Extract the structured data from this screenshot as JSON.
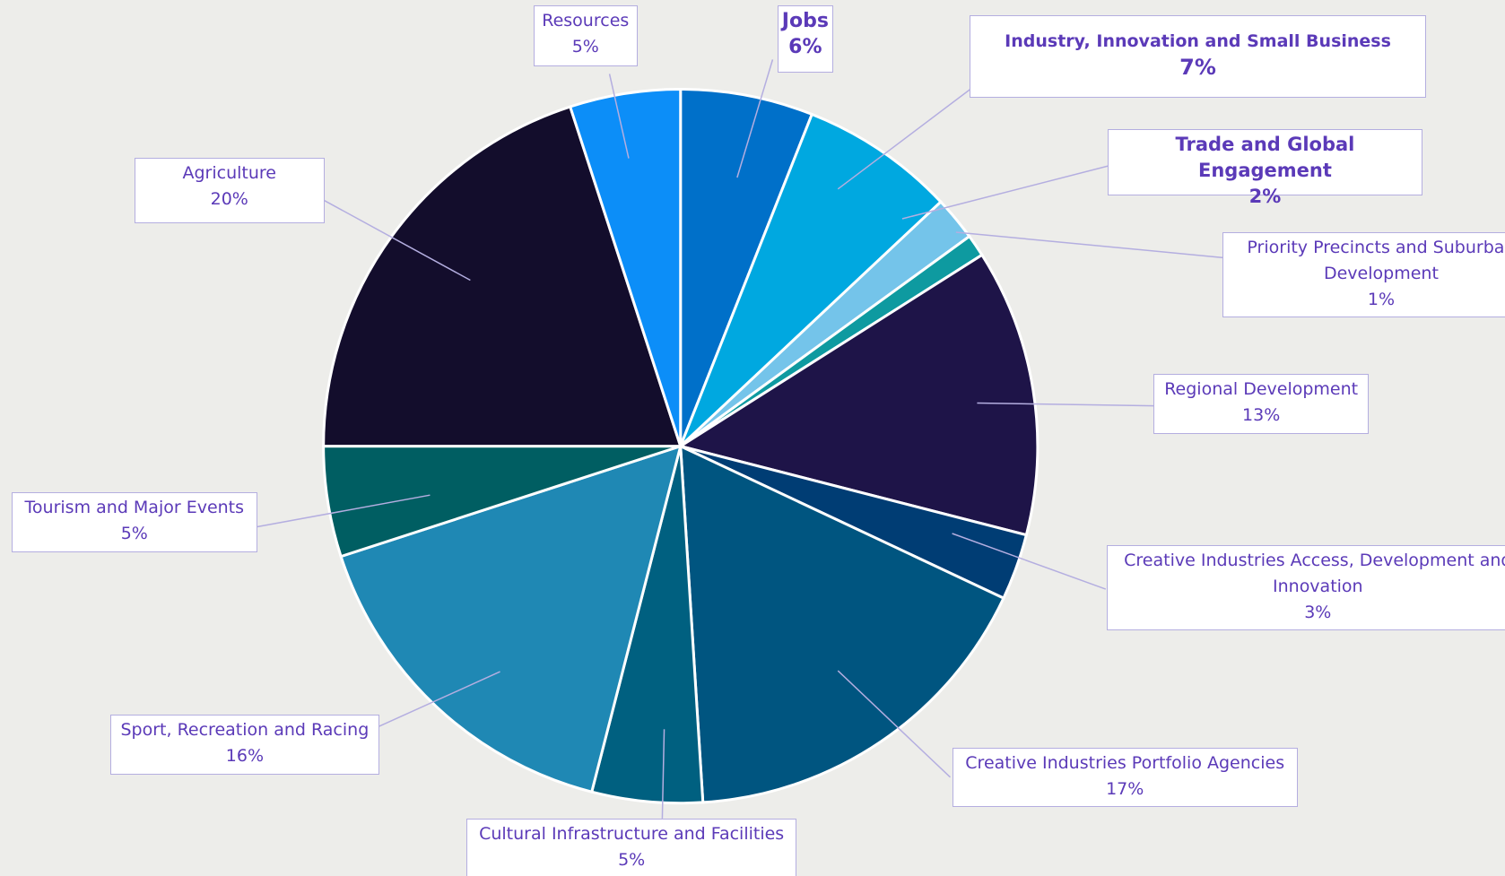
{
  "chart_data": {
    "type": "pie",
    "categories": [
      "Jobs",
      "Industry, Innovation and Small Business",
      "Trade and Global Engagement",
      "Priority Precincts and Suburban Development",
      "Regional Development",
      "Creative Industries Access, Development and Innovation",
      "Creative Industries Portfolio Agencies",
      "Cultural Infrastructure and Facilities",
      "Sport, Recreation and Racing",
      "Tourism and Major Events",
      "Agriculture",
      "Resources"
    ],
    "values": [
      6,
      7,
      2,
      1,
      13,
      3,
      17,
      5,
      16,
      5,
      20,
      5
    ],
    "value_labels": [
      "6%",
      "7%",
      "2%",
      "1%",
      "13%",
      "3%",
      "17%",
      "5%",
      "16%",
      "5%",
      "20%",
      "5%"
    ],
    "colors": [
      "#0070c9",
      "#00a8e0",
      "#74c4ea",
      "#0e9aa0",
      "#1e1448",
      "#003d74",
      "#005580",
      "#006080",
      "#1f88b4",
      "#005e62",
      "#130d2c",
      "#0c8ef8"
    ]
  }
}
